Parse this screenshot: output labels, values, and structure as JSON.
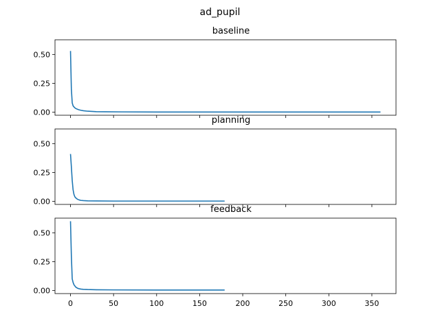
{
  "figure": {
    "suptitle": "ad_pupil",
    "line_color": "#1f77b4"
  },
  "chart_data": [
    {
      "type": "line",
      "title": "baseline",
      "xlim": [
        -18,
        378
      ],
      "ylim": [
        -0.027,
        0.627
      ],
      "yticks": [
        0.0,
        0.25,
        0.5
      ],
      "ytick_labels": [
        "0.00",
        "0.25",
        "0.50"
      ],
      "xticks": [
        0,
        50,
        100,
        150,
        200,
        250,
        300,
        350
      ],
      "xtick_labels": [],
      "series": [
        {
          "x": [
            0,
            1,
            2,
            3,
            4,
            5,
            6,
            8,
            10,
            12,
            15,
            20,
            25,
            30,
            40,
            60,
            100,
            150,
            200,
            250,
            300,
            360
          ],
          "y": [
            0.53,
            0.2,
            0.08,
            0.055,
            0.045,
            0.038,
            0.032,
            0.025,
            0.02,
            0.016,
            0.012,
            0.008,
            0.006,
            0.004,
            0.003,
            0.002,
            0.001,
            0.001,
            0.001,
            0.001,
            0.001,
            0.001
          ]
        }
      ]
    },
    {
      "type": "line",
      "title": "planning",
      "xlim": [
        -18,
        378
      ],
      "ylim": [
        -0.027,
        0.627
      ],
      "yticks": [
        0.0,
        0.25,
        0.5
      ],
      "ytick_labels": [
        "0.00",
        "0.25",
        "0.50"
      ],
      "xticks": [
        0,
        50,
        100,
        150,
        200,
        250,
        300,
        350
      ],
      "xtick_labels": [],
      "series": [
        {
          "x": [
            0,
            1,
            2,
            3,
            4,
            5,
            6,
            8,
            10,
            12,
            15,
            20,
            30,
            50,
            100,
            150,
            179
          ],
          "y": [
            0.41,
            0.3,
            0.18,
            0.1,
            0.06,
            0.04,
            0.03,
            0.018,
            0.012,
            0.008,
            0.006,
            0.004,
            0.003,
            0.002,
            0.002,
            0.002,
            0.002
          ]
        }
      ]
    },
    {
      "type": "line",
      "title": "feedback",
      "xlim": [
        -18,
        378
      ],
      "ylim": [
        -0.027,
        0.627
      ],
      "yticks": [
        0.0,
        0.25,
        0.5
      ],
      "ytick_labels": [
        "0.00",
        "0.25",
        "0.50"
      ],
      "xticks": [
        0,
        50,
        100,
        150,
        200,
        250,
        300,
        350
      ],
      "xtick_labels": [
        "0",
        "50",
        "100",
        "150",
        "200",
        "250",
        "300",
        "350"
      ],
      "series": [
        {
          "x": [
            0,
            1,
            2,
            3,
            4,
            5,
            6,
            8,
            10,
            12,
            15,
            20,
            30,
            50,
            100,
            150,
            179
          ],
          "y": [
            0.6,
            0.3,
            0.1,
            0.07,
            0.05,
            0.04,
            0.03,
            0.02,
            0.015,
            0.012,
            0.01,
            0.008,
            0.006,
            0.005,
            0.004,
            0.004,
            0.004
          ]
        }
      ]
    }
  ]
}
